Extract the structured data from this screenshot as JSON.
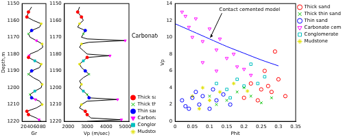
{
  "chart_data": [
    {
      "type": "scatter",
      "x_label": "Gr",
      "y_label": "Depth,m",
      "xlim": [
        15,
        90
      ],
      "xticks": [
        20,
        40,
        60,
        80
      ],
      "ylim": [
        1220,
        1150
      ],
      "yticks": [
        1150,
        1160,
        1170,
        1180,
        1190,
        1200,
        1210,
        1220
      ],
      "grid": false,
      "curve": {
        "color": "#000000",
        "x": [
          45,
          35,
          30,
          50,
          75,
          70,
          45,
          35,
          40,
          60,
          78,
          80,
          65,
          40,
          35,
          55,
          75,
          70,
          45,
          35,
          50,
          70,
          78,
          75,
          55,
          40,
          45,
          70,
          78,
          60,
          30,
          35,
          60,
          75
        ],
        "y": [
          1152,
          1155,
          1158,
          1160,
          1162,
          1164,
          1166,
          1168,
          1170,
          1172,
          1174,
          1176,
          1178,
          1180,
          1182,
          1184,
          1186,
          1188,
          1190,
          1192,
          1194,
          1196,
          1198,
          1200,
          1202,
          1204,
          1206,
          1208,
          1210,
          1212,
          1214,
          1216,
          1218,
          1220
        ]
      },
      "series": [
        {
          "name": "Thick sand",
          "color": "#ff0000",
          "marker": "circle",
          "x": [
            35,
            30,
            35,
            30,
            35
          ],
          "y": [
            1155,
            1158,
            1182,
            1214,
            1216
          ]
        },
        {
          "name": "Thick thin sand",
          "color": "#00c000",
          "marker": "cross",
          "x": [
            35,
            35,
            40
          ],
          "y": [
            1168,
            1192,
            1204
          ]
        },
        {
          "name": "Thin sand",
          "color": "#0000ff",
          "marker": "circle",
          "x": [
            45,
            45,
            45
          ],
          "y": [
            1166,
            1190,
            1206
          ]
        },
        {
          "name": "Carbonate cement",
          "color": "#ff00ff",
          "marker": "triangle_down",
          "x": [
            60,
            37,
            57,
            68
          ],
          "y": [
            1172,
            1181,
            1207,
            1219
          ]
        },
        {
          "name": "Conglomerate",
          "color": "#00c0c0",
          "marker": "square",
          "x": [
            55,
            55
          ],
          "y": [
            1184,
            1202
          ]
        },
        {
          "name": "Mudstone",
          "color": "#e0e000",
          "marker": "star",
          "x": [
            75,
            78,
            75,
            78,
            78
          ],
          "y": [
            1162,
            1174,
            1186,
            1198,
            1210
          ]
        }
      ]
    },
    {
      "type": "scatter",
      "x_label": "Vp (m/sec)",
      "annotation": "Carbonate cement",
      "xlim": [
        1800,
        5200
      ],
      "xticks": [
        2000,
        3000,
        4000,
        5000
      ],
      "ylim": [
        1220,
        1150
      ],
      "yticks": [
        1150,
        1160,
        1170,
        1180,
        1190,
        1200,
        1210,
        1220
      ],
      "grid": false,
      "legend": "right",
      "curve": {
        "color": "#000000",
        "x": [
          2600,
          2500,
          2700,
          2800,
          2600,
          2500,
          2900,
          2800,
          2700,
          3000,
          5000,
          3100,
          2700,
          2600,
          2800,
          3000,
          4200,
          3000,
          2800,
          2600,
          2700,
          2900,
          3100,
          2800,
          2600,
          2700,
          2600,
          2800,
          3000,
          3100,
          4600,
          3000,
          2700,
          2600,
          2900,
          3000,
          3200,
          4800,
          3000
        ],
        "y": [
          1152,
          1155,
          1158,
          1160,
          1162,
          1164,
          1166,
          1168,
          1170,
          1171,
          1172,
          1173,
          1174,
          1176,
          1178,
          1180,
          1181,
          1182,
          1184,
          1186,
          1188,
          1190,
          1192,
          1194,
          1196,
          1198,
          1200,
          1202,
          1204,
          1206,
          1207,
          1208,
          1210,
          1212,
          1214,
          1216,
          1218,
          1219,
          1220
        ]
      },
      "series": [
        {
          "name": "Thick sand",
          "color": "#ff0000",
          "marker": "circle",
          "x": [
            2500,
            2700,
            3000,
            2900,
            3000
          ],
          "y": [
            1155,
            1158,
            1182,
            1214,
            1216
          ]
        },
        {
          "name": "Thick thin sand",
          "color": "#00c000",
          "marker": "cross",
          "x": [
            2800,
            3100,
            3000
          ],
          "y": [
            1168,
            1192,
            1204
          ]
        },
        {
          "name": "Thin sand",
          "color": "#0000ff",
          "marker": "circle",
          "x": [
            2900,
            2900,
            3100
          ],
          "y": [
            1166,
            1190,
            1206
          ]
        },
        {
          "name": "Carbonate cement",
          "color": "#ff00ff",
          "marker": "triangle_down",
          "x": [
            5000,
            4200,
            4600,
            4800
          ],
          "y": [
            1172,
            1181,
            1207,
            1219
          ]
        },
        {
          "name": "Conglomerate",
          "color": "#00c0c0",
          "marker": "square",
          "x": [
            2800,
            2800
          ],
          "y": [
            1184,
            1202
          ]
        },
        {
          "name": "Mudstone",
          "color": "#e0e000",
          "marker": "star",
          "x": [
            2600,
            2700,
            2600,
            2700,
            2700
          ],
          "y": [
            1162,
            1174,
            1186,
            1198,
            1210
          ]
        }
      ]
    },
    {
      "type": "scatter",
      "x_label": "Phit",
      "y_label": "Vp",
      "xlim": [
        0,
        0.35
      ],
      "xticks": [
        0,
        0.05,
        0.1,
        0.15,
        0.2,
        0.25,
        0.3,
        0.35
      ],
      "ylim": [
        0,
        14
      ],
      "yticks": [
        0,
        2,
        4,
        6,
        8,
        10,
        12,
        14
      ],
      "grid": false,
      "legend": "right",
      "curve": {
        "name": "Contact cemented model",
        "color": "#0000ff",
        "x": [
          0,
          0.05,
          0.1,
          0.15,
          0.2,
          0.25,
          0.3
        ],
        "y": [
          11.6,
          10.7,
          9.8,
          8.9,
          8.1,
          7.3,
          6.6
        ]
      },
      "series": [
        {
          "name": "Thick sand",
          "color": "#ff0000",
          "marker": "circle",
          "x": [
            0.22,
            0.25,
            0.27,
            0.28,
            0.3,
            0.26,
            0.29,
            0.2,
            0.32,
            0.24
          ],
          "y": [
            4.5,
            3.8,
            4.2,
            3.5,
            5.0,
            6.0,
            8.3,
            2.8,
            3.0,
            2.5
          ]
        },
        {
          "name": "Thick thin sand",
          "color": "#00c000",
          "marker": "cross",
          "x": [
            0.1,
            0.15,
            0.18,
            0.2,
            0.22,
            0.25,
            0.12,
            0.28
          ],
          "y": [
            3.0,
            2.5,
            3.5,
            4.0,
            3.0,
            2.2,
            2.0,
            2.8
          ]
        },
        {
          "name": "Thin sand",
          "color": "#0000ff",
          "marker": "circle",
          "x": [
            0.02,
            0.04,
            0.05,
            0.07,
            0.08,
            0.1,
            0.12,
            0.14,
            0.16,
            0.03,
            0.06,
            0.11
          ],
          "y": [
            2.5,
            1.5,
            2.8,
            2.0,
            3.0,
            1.5,
            2.5,
            3.2,
            2.0,
            1.8,
            3.5,
            3.8
          ]
        },
        {
          "name": "Carbonate cement",
          "color": "#ff00ff",
          "marker": "triangle_down",
          "x": [
            0.02,
            0.03,
            0.04,
            0.05,
            0.06,
            0.08,
            0.1,
            0.12,
            0.13,
            0.15,
            0.17,
            0.18,
            0.2,
            0.12,
            0.08,
            0.22
          ],
          "y": [
            13.0,
            12.5,
            11.2,
            10.0,
            12.2,
            9.5,
            11.0,
            8.5,
            9.8,
            7.5,
            8.0,
            6.5,
            6.2,
            6.0,
            7.0,
            5.5
          ]
        },
        {
          "name": "Conglomerate",
          "color": "#00c0c0",
          "marker": "square",
          "x": [
            0.12,
            0.15,
            0.18,
            0.2,
            0.22,
            0.24,
            0.16,
            0.26
          ],
          "y": [
            4.5,
            3.8,
            5.0,
            4.2,
            6.8,
            4.5,
            2.8,
            5.3
          ]
        },
        {
          "name": "Mudstone",
          "color": "#e0e000",
          "marker": "star",
          "x": [
            0.05,
            0.08,
            0.1,
            0.13,
            0.17,
            0.21,
            0.07
          ],
          "y": [
            3.0,
            4.0,
            2.5,
            3.5,
            4.5,
            3.6,
            1.5
          ]
        }
      ]
    }
  ]
}
